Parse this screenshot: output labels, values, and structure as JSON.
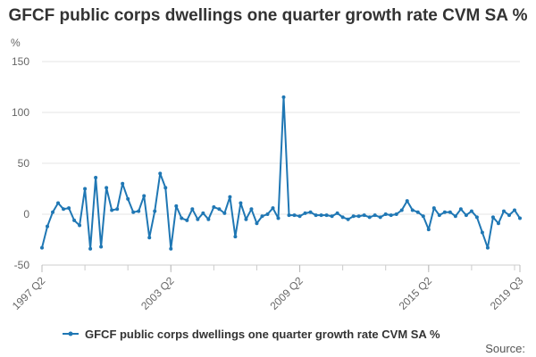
{
  "chart_data": {
    "type": "line",
    "title": "GFCF public corps dwellings one quarter growth rate CVM SA %",
    "ylabel": "%",
    "xlabel": "",
    "ylim": [
      -50,
      150
    ],
    "yticks": [
      -50,
      0,
      50,
      100,
      150
    ],
    "xticks": [
      {
        "label": "1997 Q2",
        "index": 0
      },
      {
        "label": "2003 Q2",
        "index": 24
      },
      {
        "label": "2009 Q2",
        "index": 48
      },
      {
        "label": "2015 Q2",
        "index": 72
      },
      {
        "label": "2019 Q3",
        "index": 89
      }
    ],
    "grid": true,
    "legend_position": "bottom",
    "series": [
      {
        "name": "GFCF public corps dwellings one quarter growth rate CVM SA %",
        "color": "#1f77b4",
        "start": "1997 Q2",
        "end": "2019 Q3",
        "values": [
          -33,
          -12,
          2,
          11,
          5,
          6,
          -6,
          -11,
          25,
          -34,
          36,
          -32,
          26,
          4,
          5,
          30,
          15,
          2,
          3,
          18,
          -23,
          3,
          40,
          26,
          -34,
          8,
          -4,
          -6,
          5,
          -5,
          1,
          -5,
          7,
          5,
          1,
          17,
          -22,
          11,
          -5,
          5,
          -9,
          -2,
          0,
          6,
          -4,
          115,
          -1,
          -1,
          -2,
          1,
          2,
          -1,
          -1,
          -1,
          -2,
          1,
          -3,
          -5,
          -2,
          -2,
          -1,
          -3,
          -1,
          -3,
          0,
          -1,
          0,
          4,
          13,
          4,
          2,
          -2,
          -15,
          6,
          -1,
          2,
          2,
          -2,
          5,
          -1,
          3,
          -3,
          -18,
          -33,
          -3,
          -9,
          3,
          -1,
          4,
          -4
        ]
      }
    ]
  },
  "legend": {
    "label": "GFCF public corps dwellings one quarter growth rate CVM SA %"
  },
  "footer": {
    "source": "Source:"
  },
  "colors": {
    "series": "#1f77b4",
    "grid": "#e6e6e6",
    "axis": "#cccccc",
    "text": "#333333"
  }
}
